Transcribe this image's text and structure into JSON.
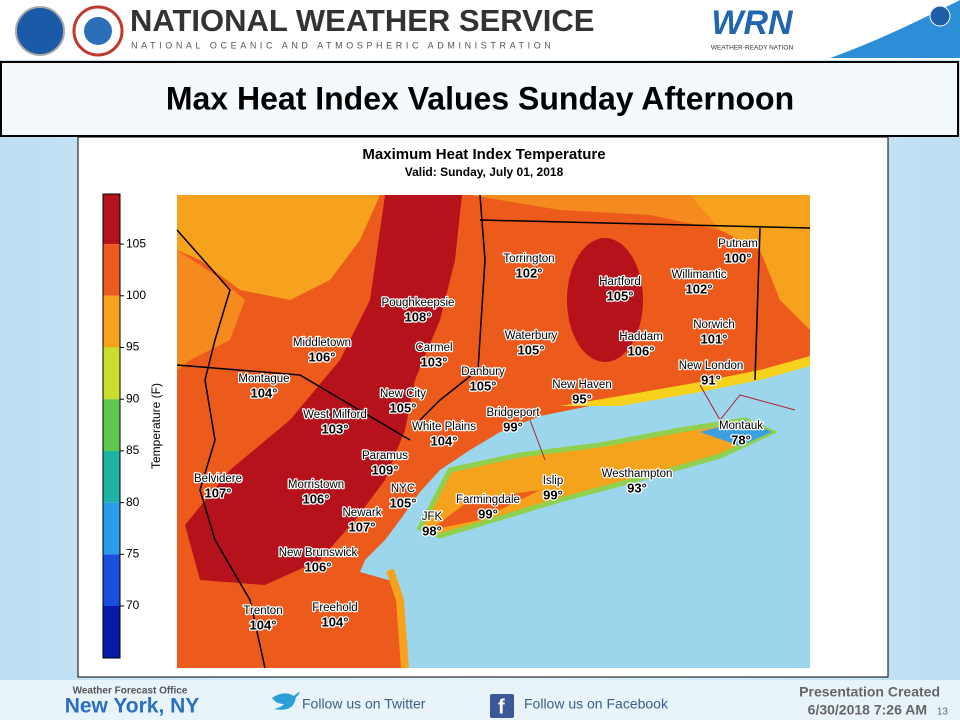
{
  "header": {
    "title": "NATIONAL WEATHER SERVICE",
    "subtitle": "NATIONAL OCEANIC AND ATMOSPHERIC ADMINISTRATION",
    "logo": "WRN",
    "tagline": "WEATHER-READY NATION"
  },
  "slide_title": "Max Heat Index Values Sunday Afternoon",
  "map": {
    "title": "Maximum Heat Index Temperature",
    "valid": "Valid: Sunday, July 01, 2018",
    "colorbar": {
      "label": "Temperature (F)",
      "ticks": [
        105,
        100,
        95,
        90,
        85,
        80,
        75,
        70
      ]
    },
    "cities": [
      {
        "name": "Torrington",
        "value": "102°"
      },
      {
        "name": "Hartford",
        "value": "105°"
      },
      {
        "name": "Putnam",
        "value": "100°"
      },
      {
        "name": "Willimantic",
        "value": "102°"
      },
      {
        "name": "Poughkeepsie",
        "value": "108°"
      },
      {
        "name": "Norwich",
        "value": "101°"
      },
      {
        "name": "Middletown",
        "value": "106°"
      },
      {
        "name": "Carmel",
        "value": "103°"
      },
      {
        "name": "Waterbury",
        "value": "105°"
      },
      {
        "name": "Haddam",
        "value": "106°"
      },
      {
        "name": "Danbury",
        "value": "105°"
      },
      {
        "name": "New London",
        "value": "91°"
      },
      {
        "name": "Montague",
        "value": "104°"
      },
      {
        "name": "New Haven",
        "value": "95°"
      },
      {
        "name": "New City",
        "value": "105°"
      },
      {
        "name": "West Milford",
        "value": "103°"
      },
      {
        "name": "Bridgeport",
        "value": "99°"
      },
      {
        "name": "White Plains",
        "value": "104°"
      },
      {
        "name": "Montauk",
        "value": "78°"
      },
      {
        "name": "Paramus",
        "value": "109°"
      },
      {
        "name": "Belvidere",
        "value": "107°"
      },
      {
        "name": "Morristown",
        "value": "106°"
      },
      {
        "name": "NYC",
        "value": "105°"
      },
      {
        "name": "Westhampton",
        "value": "93°"
      },
      {
        "name": "Islip",
        "value": "99°"
      },
      {
        "name": "Farmingdale",
        "value": "99°"
      },
      {
        "name": "Newark",
        "value": "107°"
      },
      {
        "name": "JFK",
        "value": "98°"
      },
      {
        "name": "New Brunswick",
        "value": "106°"
      },
      {
        "name": "Trenton",
        "value": "104°"
      },
      {
        "name": "Freehold",
        "value": "104°"
      }
    ]
  },
  "footer": {
    "office_label": "Weather Forecast Office",
    "office": "New York, NY",
    "twitter": "Follow us on Twitter",
    "facebook": "Follow us on Facebook",
    "created_label": "Presentation Created",
    "created": "6/30/2018 7:26 AM",
    "page": "13"
  }
}
